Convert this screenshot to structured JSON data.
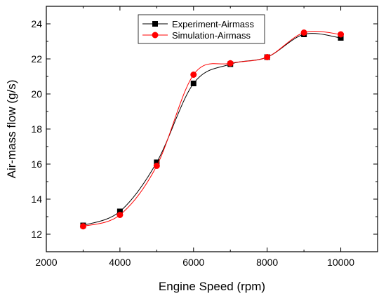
{
  "chart_data": {
    "type": "line",
    "title": "",
    "xlabel": "Engine Speed (rpm)",
    "ylabel": "Air-mass flow (g/s)",
    "xlim": [
      2000,
      11000
    ],
    "ylim": [
      11,
      25
    ],
    "xticks": [
      2000,
      4000,
      6000,
      8000,
      10000
    ],
    "yticks": [
      12,
      14,
      16,
      18,
      20,
      22,
      24
    ],
    "x": [
      3000,
      4000,
      5000,
      6000,
      7000,
      8000,
      9000,
      10000
    ],
    "series": [
      {
        "name": "Experiment-Airmass",
        "marker": "square",
        "color": "#000000",
        "values": [
          12.5,
          13.3,
          16.1,
          20.6,
          21.7,
          22.1,
          23.4,
          23.2
        ]
      },
      {
        "name": "Simulation-Airmass",
        "marker": "circle",
        "color": "#ff0000",
        "values": [
          12.45,
          13.1,
          15.9,
          21.1,
          21.75,
          22.1,
          23.5,
          23.4
        ]
      }
    ],
    "legend_position": "top-center",
    "grid": false
  }
}
